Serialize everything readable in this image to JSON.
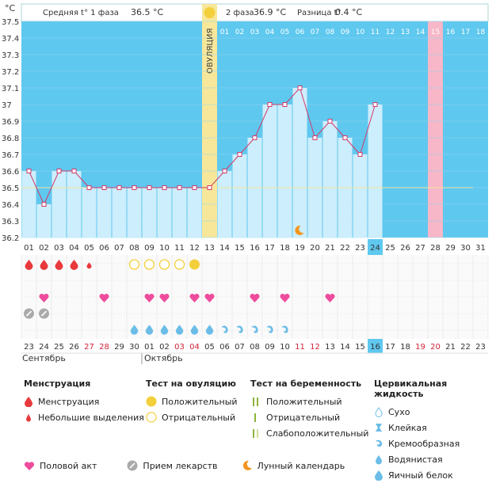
{
  "header": {
    "unit": "°C",
    "phase1": "Средняя t° 1 фаза",
    "phase1_value": "36.5 °C",
    "phase2": "2 фаза",
    "phase2_value": "36.9 °C",
    "diff": "Разница t°",
    "diff_value": "0.4 °C"
  },
  "ovulation_label": "ОВУЛЯЦИЯ",
  "months": [
    "Сентябрь",
    "Октябрь"
  ],
  "chart_data": {
    "type": "line",
    "x": [
      1,
      2,
      3,
      4,
      5,
      6,
      7,
      8,
      9,
      10,
      11,
      12,
      13,
      14,
      15,
      16,
      17,
      18,
      19,
      20,
      21,
      22,
      23,
      24
    ],
    "values": [
      36.6,
      36.4,
      36.6,
      36.6,
      36.5,
      36.5,
      36.5,
      36.5,
      36.5,
      36.5,
      36.5,
      36.5,
      36.5,
      36.6,
      36.7,
      36.8,
      37.0,
      37.0,
      37.1,
      36.8,
      36.9,
      36.8,
      36.7,
      37.0
    ],
    "ylim": [
      36.2,
      37.5
    ],
    "y_ticks": [
      "36.2",
      "36.3",
      "36.4",
      "36.5",
      "36.6",
      "36.7",
      "36.8",
      "36.9",
      "37",
      "37.1",
      "37.2",
      "37.3",
      "37.4",
      "37.5"
    ],
    "x_ticks": [
      "01",
      "02",
      "03",
      "04",
      "05",
      "06",
      "07",
      "08",
      "09",
      "10",
      "11",
      "12",
      "13",
      "14",
      "15",
      "16",
      "17",
      "18",
      "19",
      "20",
      "21",
      "22",
      "23",
      "24",
      "25",
      "26",
      "27",
      "28",
      "29",
      "30",
      "31"
    ],
    "top_ticks": [
      "01",
      "02",
      "03",
      "04",
      "05",
      "06",
      "07",
      "08",
      "09",
      "10",
      "11",
      "12",
      "13",
      "14",
      "15",
      "16",
      "17",
      "18"
    ],
    "coverline": 36.5,
    "ovulation_day": 13,
    "today_day": 24,
    "expected_period_day": 28,
    "dates": [
      "23",
      "24",
      "25",
      "26",
      "27",
      "28",
      "29",
      "30",
      "01",
      "02",
      "03",
      "04",
      "05",
      "06",
      "07",
      "08",
      "09",
      "10",
      "11",
      "12",
      "13",
      "14",
      "15",
      "16",
      "17",
      "18",
      "19",
      "20",
      "21",
      "22",
      "23"
    ],
    "red_dates": [
      5,
      6,
      11,
      12,
      19,
      20,
      27,
      28
    ],
    "today_date": "16",
    "menstruation": [
      1,
      2,
      3,
      4
    ],
    "spotting": [
      5
    ],
    "ov_test_negative": [
      8,
      9,
      10,
      11
    ],
    "ov_test_positive": [
      12
    ],
    "intercourse": [
      2,
      6,
      9,
      10,
      12,
      13,
      16,
      18,
      21
    ],
    "medication": [
      1,
      2
    ],
    "cervical_egg_white": [
      8,
      9,
      10,
      11,
      12,
      13
    ],
    "cervical_watery": [
      14,
      15,
      16,
      17,
      18
    ],
    "moon_day": 19
  },
  "legend": {
    "menstruation_title": "Менструация",
    "menstruation": "Менструация",
    "spotting": "Небольшие выделения",
    "ov_title": "Тест на овуляцию",
    "ov_positive": "Положительный",
    "ov_negative": "Отрицательный",
    "preg_title": "Тест на беременность",
    "preg_positive": "Положительный",
    "preg_negative": "Отрицательный",
    "preg_weak": "Слабоположительный",
    "cerv_title": "Цервикальная жидкость",
    "cerv_dry": "Сухо",
    "cerv_sticky": "Клейкая",
    "cerv_creamy": "Кремообразная",
    "cerv_watery": "Водянистая",
    "cerv_eggwhite": "Яичный белок",
    "intercourse": "Половой акт",
    "medication": "Прием лекарств",
    "moon": "Лунный календарь"
  },
  "colors": {
    "sky": "#5fc8ef",
    "bar": "#cdeefc",
    "ovulation": "#f7e79a",
    "expected": "#f7b7c8",
    "line": "#d23a6a",
    "blood": "#e8393c",
    "heart": "#ee4c9c",
    "drop": "#6bbde8",
    "sun": "#f4cf3c",
    "moon": "#f3961e"
  }
}
